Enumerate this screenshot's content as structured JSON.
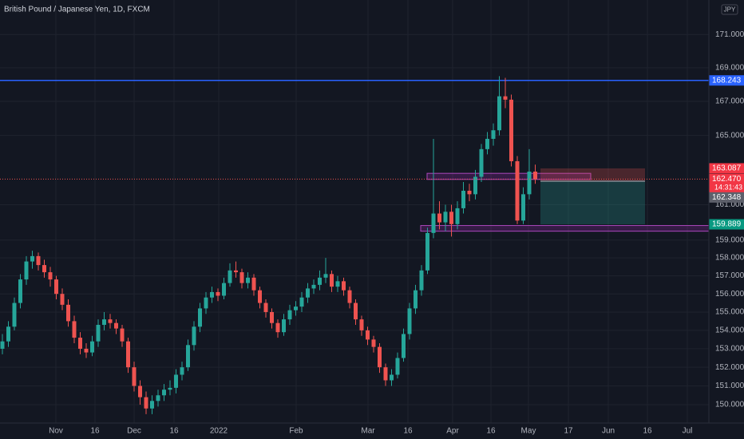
{
  "chart_data": {
    "type": "candlestick",
    "title": "British Pound / Japanese Yen, 1D, FXCM",
    "currency": "JPY",
    "log_scale": true,
    "grid": true,
    "up_color": "#26a69a",
    "down_color": "#ef5350",
    "ylim": [
      149.03,
      173.1
    ],
    "yticks": [
      {
        "value": 150,
        "label": "150.000"
      },
      {
        "value": 151,
        "label": "151.000"
      },
      {
        "value": 152,
        "label": "152.000"
      },
      {
        "value": 153,
        "label": "153.000"
      },
      {
        "value": 154,
        "label": "154.000"
      },
      {
        "value": 155,
        "label": "155.000"
      },
      {
        "value": 156,
        "label": "156.000"
      },
      {
        "value": 157,
        "label": "157.000"
      },
      {
        "value": 158,
        "label": "158.000"
      },
      {
        "value": 159,
        "label": "159.000"
      },
      {
        "value": 161,
        "label": "161.000"
      },
      {
        "value": 165,
        "label": "165.000"
      },
      {
        "value": 167,
        "label": "167.000"
      },
      {
        "value": 169,
        "label": "169.000"
      },
      {
        "value": 171,
        "label": "171.000"
      }
    ],
    "x_labels": [
      "Nov",
      "16",
      "Dec",
      "16",
      "2022",
      "Feb",
      "Mar",
      "16",
      "Apr",
      "16",
      "May",
      "17",
      "Jun",
      "16",
      "Jul"
    ],
    "candles": [
      [
        153.0,
        153.8,
        152.7,
        153.4
      ],
      [
        153.4,
        154.5,
        153.1,
        154.2
      ],
      [
        154.2,
        155.8,
        154.0,
        155.5
      ],
      [
        155.5,
        157.1,
        155.2,
        156.8
      ],
      [
        156.8,
        158.1,
        156.5,
        157.8
      ],
      [
        157.8,
        158.4,
        157.4,
        158.1
      ],
      [
        158.1,
        158.3,
        157.3,
        157.6
      ],
      [
        157.6,
        157.9,
        156.9,
        157.2
      ],
      [
        157.2,
        157.5,
        156.4,
        156.8
      ],
      [
        156.8,
        157.0,
        155.7,
        156.0
      ],
      [
        156.0,
        156.3,
        155.1,
        155.4
      ],
      [
        155.4,
        155.7,
        154.2,
        154.5
      ],
      [
        154.5,
        154.8,
        153.3,
        153.6
      ],
      [
        153.6,
        153.9,
        152.7,
        153.0
      ],
      [
        153.0,
        153.3,
        152.5,
        152.8
      ],
      [
        152.8,
        153.7,
        152.6,
        153.4
      ],
      [
        153.4,
        154.6,
        153.1,
        154.3
      ],
      [
        154.3,
        155.0,
        154.0,
        154.6
      ],
      [
        154.6,
        154.9,
        154.1,
        154.4
      ],
      [
        154.4,
        154.6,
        153.8,
        154.1
      ],
      [
        154.1,
        154.3,
        153.1,
        153.4
      ],
      [
        153.4,
        153.6,
        151.7,
        152.0
      ],
      [
        152.0,
        152.3,
        150.7,
        151.0
      ],
      [
        151.0,
        151.3,
        150.0,
        150.4
      ],
      [
        150.4,
        150.7,
        149.5,
        149.8
      ],
      [
        149.8,
        150.5,
        149.5,
        150.2
      ],
      [
        150.2,
        150.8,
        149.9,
        150.5
      ],
      [
        150.5,
        151.1,
        150.2,
        150.8
      ],
      [
        150.8,
        151.3,
        150.5,
        150.9
      ],
      [
        150.9,
        151.9,
        150.6,
        151.6
      ],
      [
        151.6,
        152.3,
        151.3,
        152.0
      ],
      [
        152.0,
        153.5,
        151.8,
        153.2
      ],
      [
        153.2,
        154.5,
        152.9,
        154.2
      ],
      [
        154.2,
        155.5,
        153.9,
        155.2
      ],
      [
        155.2,
        156.1,
        154.9,
        155.8
      ],
      [
        155.8,
        156.4,
        155.5,
        156.1
      ],
      [
        156.1,
        156.3,
        155.6,
        155.9
      ],
      [
        155.9,
        156.9,
        155.7,
        156.6
      ],
      [
        156.6,
        157.7,
        156.4,
        157.3
      ],
      [
        157.3,
        157.8,
        156.9,
        157.2
      ],
      [
        157.2,
        157.4,
        156.3,
        156.6
      ],
      [
        156.6,
        157.2,
        156.3,
        156.9
      ],
      [
        156.9,
        157.1,
        155.9,
        156.2
      ],
      [
        156.2,
        156.4,
        155.2,
        155.5
      ],
      [
        155.5,
        155.7,
        154.7,
        155.0
      ],
      [
        155.0,
        155.2,
        154.1,
        154.4
      ],
      [
        154.4,
        154.6,
        153.6,
        153.9
      ],
      [
        153.9,
        154.9,
        153.7,
        154.6
      ],
      [
        154.6,
        155.4,
        154.3,
        155.1
      ],
      [
        155.1,
        155.6,
        154.8,
        155.3
      ],
      [
        155.3,
        156.1,
        155.0,
        155.8
      ],
      [
        155.8,
        156.6,
        155.5,
        156.3
      ],
      [
        156.3,
        156.8,
        156.0,
        156.5
      ],
      [
        156.5,
        157.3,
        156.2,
        156.9
      ],
      [
        156.9,
        158.0,
        156.6,
        157.1
      ],
      [
        157.1,
        157.3,
        156.1,
        156.4
      ],
      [
        156.4,
        157.0,
        156.1,
        156.7
      ],
      [
        156.7,
        156.9,
        155.9,
        156.2
      ],
      [
        156.2,
        156.4,
        155.2,
        155.5
      ],
      [
        155.5,
        155.7,
        154.3,
        154.6
      ],
      [
        154.6,
        154.8,
        153.7,
        154.0
      ],
      [
        154.0,
        154.2,
        153.2,
        153.5
      ],
      [
        153.5,
        153.7,
        152.8,
        153.1
      ],
      [
        153.1,
        153.3,
        151.7,
        152.0
      ],
      [
        152.0,
        152.2,
        151.0,
        151.3
      ],
      [
        151.3,
        151.9,
        151.0,
        151.6
      ],
      [
        151.6,
        152.8,
        151.4,
        152.5
      ],
      [
        152.5,
        154.1,
        152.3,
        153.8
      ],
      [
        153.8,
        155.5,
        153.5,
        155.2
      ],
      [
        155.2,
        156.5,
        154.9,
        156.2
      ],
      [
        156.2,
        157.6,
        155.9,
        157.3
      ],
      [
        157.3,
        159.7,
        157.1,
        159.4
      ],
      [
        159.4,
        164.8,
        159.1,
        160.5
      ],
      [
        160.5,
        161.2,
        159.6,
        160.0
      ],
      [
        160.0,
        161.0,
        159.5,
        160.6
      ],
      [
        160.6,
        161.0,
        159.2,
        159.9
      ],
      [
        159.9,
        161.2,
        159.6,
        160.8
      ],
      [
        160.8,
        162.3,
        160.5,
        161.8
      ],
      [
        161.8,
        162.2,
        161.2,
        161.6
      ],
      [
        161.6,
        163.0,
        161.3,
        162.6
      ],
      [
        162.6,
        164.5,
        162.3,
        164.2
      ],
      [
        164.2,
        165.2,
        163.9,
        164.8
      ],
      [
        164.8,
        165.7,
        164.4,
        165.3
      ],
      [
        165.3,
        168.5,
        165.0,
        167.3
      ],
      [
        167.3,
        168.4,
        166.6,
        167.1
      ],
      [
        167.1,
        167.4,
        163.2,
        163.5
      ],
      [
        163.5,
        163.8,
        159.9,
        160.1
      ],
      [
        160.1,
        162.0,
        159.9,
        161.6
      ],
      [
        161.6,
        164.2,
        161.3,
        162.9
      ],
      [
        162.9,
        163.3,
        162.2,
        162.47
      ]
    ],
    "zones": [
      {
        "top": 162.8,
        "bottom": 162.45
      },
      {
        "top": 159.82,
        "bottom": 159.5
      }
    ],
    "level_line": {
      "value": 168.243,
      "label": "168.243",
      "color": "#2962ff"
    },
    "position": {
      "stop": {
        "value": 163.087,
        "label": "163.087"
      },
      "entry": {
        "value": 162.348,
        "label": "162.348"
      },
      "target": {
        "value": 159.889,
        "label": "159.889"
      }
    },
    "last_price": {
      "value": 162.47,
      "label": "162.470",
      "countdown": "14:31:43"
    }
  }
}
